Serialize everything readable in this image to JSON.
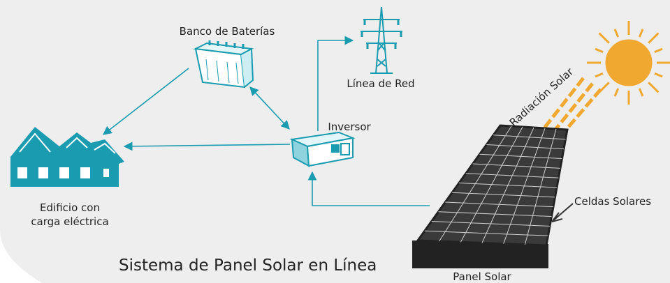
{
  "title": "Sistema de Panel Solar en Línea",
  "nodes": [
    {
      "label": "Banco de Baterías"
    },
    {
      "label": "Línea de Red"
    },
    {
      "label": "Inversor"
    },
    {
      "label_lines": [
        "Edificio con",
        "carga eléctrica"
      ]
    },
    {
      "label": "Panel Solar"
    },
    {
      "label": "Celdas Solares"
    },
    {
      "label": "Radiación Solar"
    }
  ]
}
